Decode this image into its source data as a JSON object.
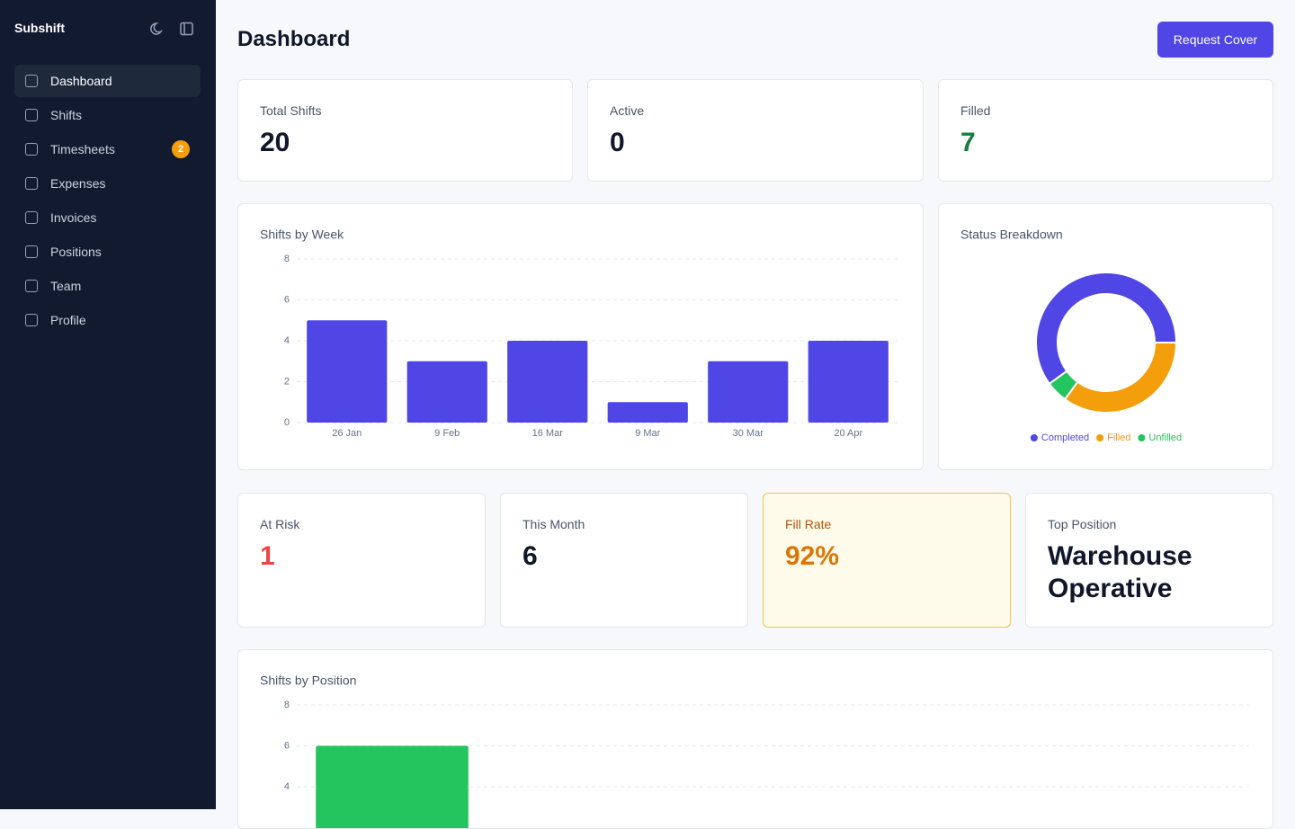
{
  "sidebar": {
    "brand": "Subshift",
    "nav": [
      {
        "label": "Dashboard"
      },
      {
        "label": "Shifts"
      },
      {
        "label": "Timesheets",
        "badge": "2"
      },
      {
        "label": "Expenses"
      },
      {
        "label": "Invoices"
      },
      {
        "label": "Positions"
      },
      {
        "label": "Team"
      },
      {
        "label": "Profile"
      }
    ]
  },
  "header": {
    "title": "Dashboard",
    "action": "Request Cover"
  },
  "stats": [
    {
      "label": "Total Shifts",
      "value": "20"
    },
    {
      "label": "Active",
      "value": "0"
    },
    {
      "label": "Filled",
      "value": "7"
    }
  ],
  "stats2": [
    {
      "label": "At Risk",
      "value": "1"
    },
    {
      "label": "This Month",
      "value": "6"
    },
    {
      "label": "Fill Rate",
      "value": "92%"
    },
    {
      "label": "Top Position",
      "value": "Warehouse Operative"
    }
  ],
  "chart_data": [
    {
      "type": "bar",
      "title": "Shifts by Week",
      "categories": [
        "26 Jan",
        "9 Feb",
        "16 Mar",
        "9 Mar",
        "30 Mar",
        "20 Apr"
      ],
      "values": [
        5,
        3,
        4,
        1,
        3,
        4
      ],
      "color": "#4f46e5",
      "ylim": [
        0,
        8
      ],
      "yticks": [
        0,
        2,
        4,
        6,
        8
      ],
      "grid": true
    },
    {
      "type": "pie",
      "title": "Status Breakdown",
      "categories": [
        "Completed",
        "Filled",
        "Unfilled"
      ],
      "values": [
        12,
        7,
        1
      ],
      "colors": [
        "#4f46e5",
        "#f59e0b",
        "#22c55e"
      ],
      "donut": true
    },
    {
      "type": "bar",
      "title": "Shifts by Position",
      "categories": [
        null
      ],
      "values": [
        6
      ],
      "color": "#22c55e",
      "ylim": [
        0,
        8
      ],
      "yticks": [
        4,
        6,
        8
      ],
      "grid": true
    }
  ]
}
